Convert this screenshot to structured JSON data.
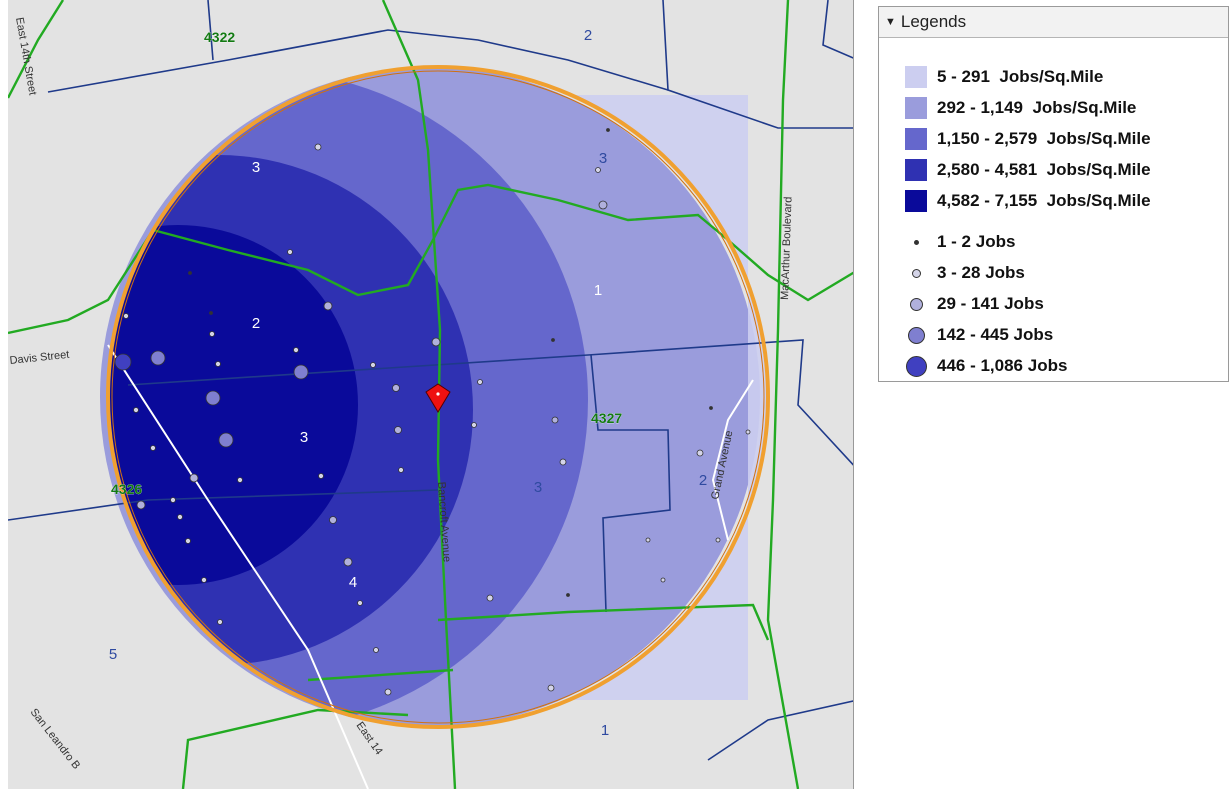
{
  "map": {
    "center_marker": "location-pin-icon",
    "tract_labels": [
      "4322",
      "4327",
      "4326"
    ],
    "zone_labels": [
      "2",
      "3",
      "3",
      "1",
      "2",
      "3",
      "3",
      "2",
      "3",
      "4",
      "5",
      "1"
    ],
    "street_labels": [
      "East 14th Street",
      "Davis Street",
      "Bancroft Avenue",
      "Grand Avenue",
      "MacArthur Boulevard",
      "San Leandro B",
      "East 14"
    ],
    "colors": {
      "background": "#e3e3e3",
      "highway": "#22aa22",
      "tract_line": "#1f3a8a",
      "buffer_ring": "#f0a030",
      "marker": "#ee1111",
      "tract_label": "#137a13",
      "zone_label": "#2f4aa0"
    }
  },
  "legend": {
    "title": "Legends",
    "density": [
      {
        "label": "5 - 291  Jobs/Sq.Mile",
        "color": "#cccef0"
      },
      {
        "label": "292 - 1,149  Jobs/Sq.Mile",
        "color": "#9a9cdc"
      },
      {
        "label": "1,150 - 2,579  Jobs/Sq.Mile",
        "color": "#6567cc"
      },
      {
        "label": "2,580 - 4,581  Jobs/Sq.Mile",
        "color": "#2f31b2"
      },
      {
        "label": "4,582 - 7,155  Jobs/Sq.Mile",
        "color": "#0a0a9a"
      }
    ],
    "points": [
      {
        "label": "1 - 2 Jobs",
        "color": "#333333"
      },
      {
        "label": "3 - 28 Jobs",
        "color": "#d4d4e8"
      },
      {
        "label": "29 - 141 Jobs",
        "color": "#b0b0dc"
      },
      {
        "label": "142 - 445 Jobs",
        "color": "#7f7fd0"
      },
      {
        "label": "446 - 1,086 Jobs",
        "color": "#4040c0"
      }
    ]
  }
}
